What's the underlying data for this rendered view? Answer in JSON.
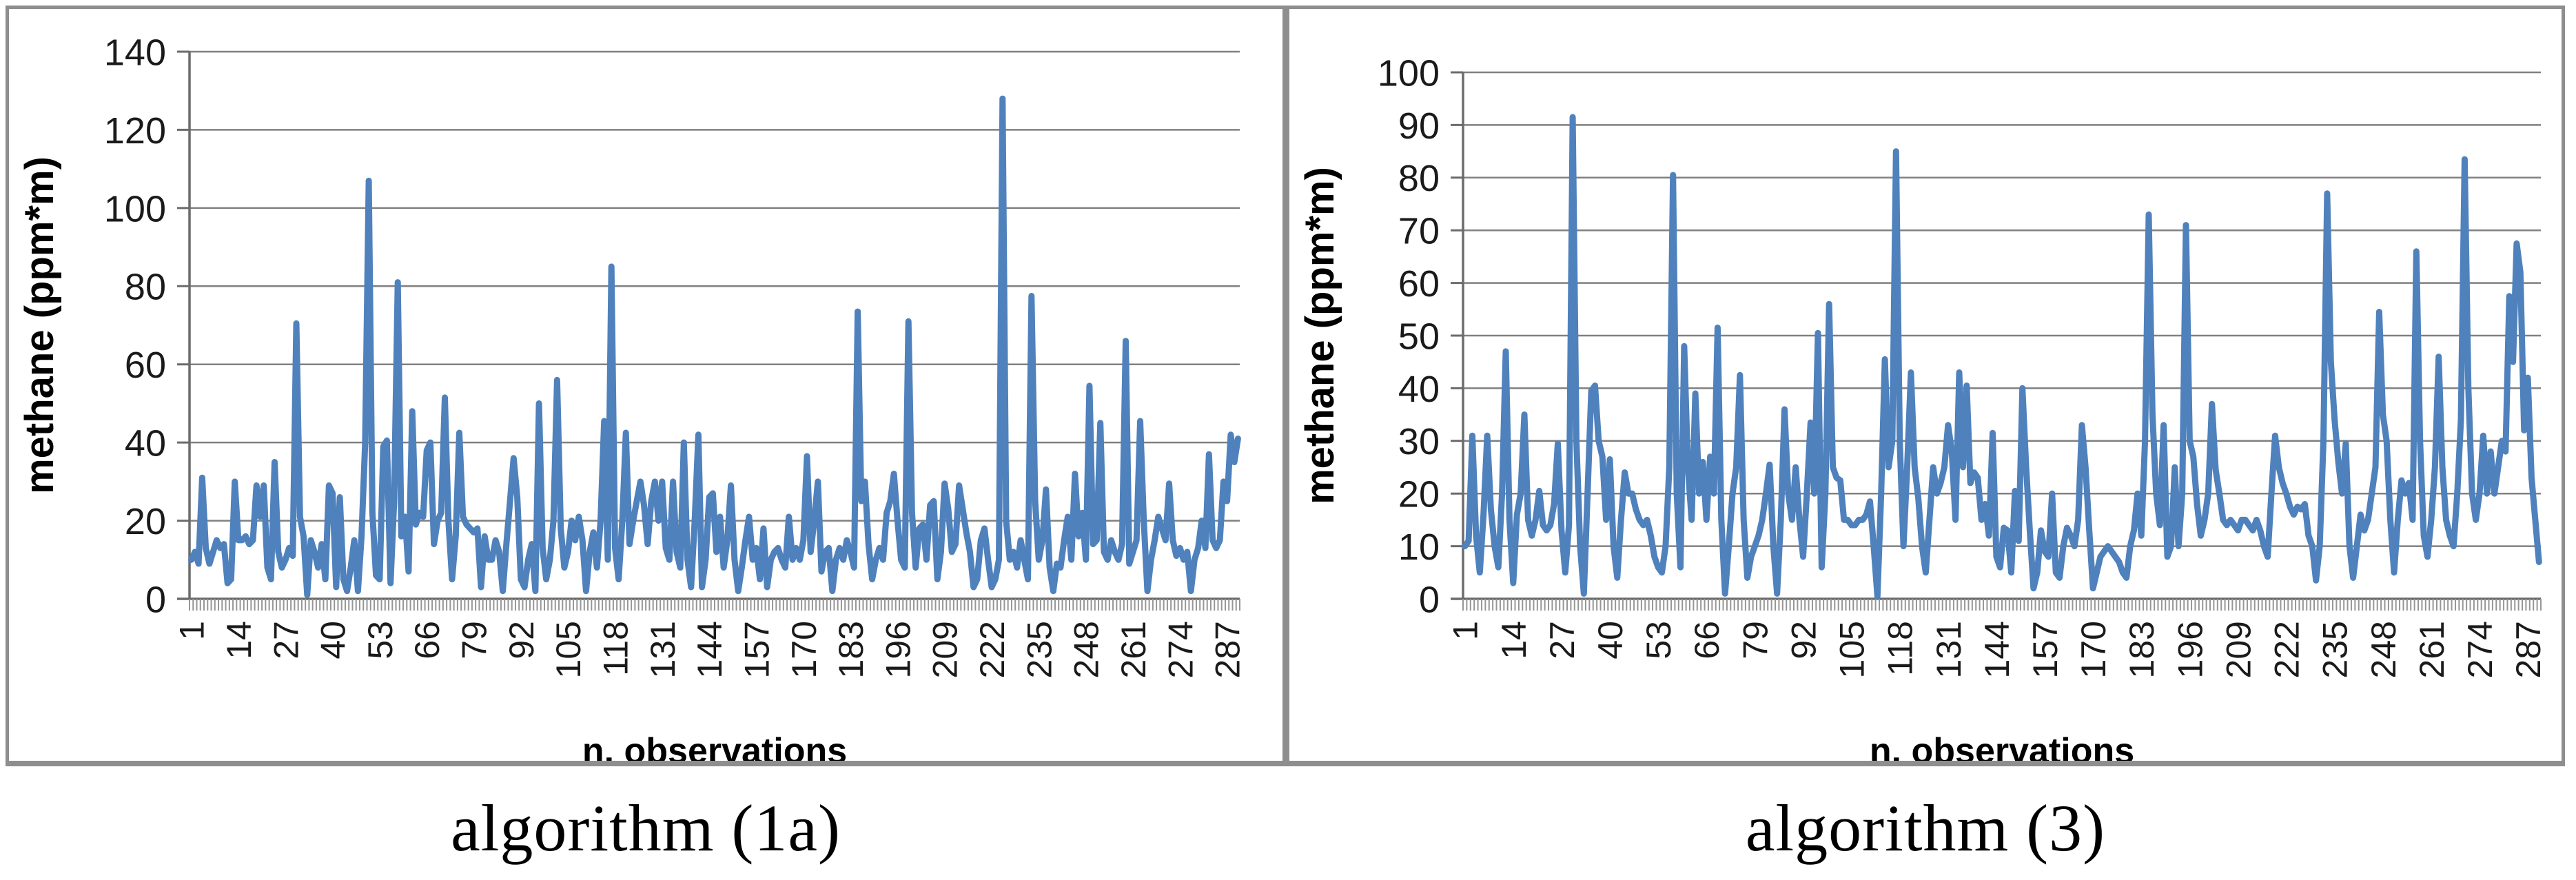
{
  "colors": {
    "series_line": "#4F81BD",
    "gridline": "#808080",
    "axis_line": "#6b6b6b",
    "tick_mark": "#969696",
    "panel_border": "#8e8e8e",
    "text": "#1a1a1a"
  },
  "chart_data": [
    {
      "type": "line",
      "title": "algorithm (1a)",
      "xlabel": "n. observations",
      "ylabel": "methane (ppm*m)",
      "ylim": [
        0,
        140
      ],
      "ystep": 20,
      "grid": true,
      "legend": null,
      "xticks": [
        1,
        14,
        27,
        40,
        53,
        66,
        79,
        92,
        105,
        118,
        131,
        144,
        157,
        170,
        183,
        196,
        209,
        222,
        235,
        248,
        261,
        274,
        287
      ],
      "series": [
        {
          "name": "methane",
          "values": [
            10,
            12,
            9,
            31,
            13,
            9,
            12,
            15,
            13,
            14,
            4,
            5,
            30,
            15,
            15,
            16,
            14,
            15,
            29,
            21,
            29,
            8,
            5,
            35,
            12,
            8,
            10,
            13,
            11,
            70.5,
            21,
            16,
            1,
            15,
            12,
            8,
            14,
            5,
            29,
            27,
            3,
            26,
            5,
            2,
            8,
            15,
            2,
            16,
            40,
            107,
            22,
            6,
            5,
            39,
            40.5,
            4,
            25,
            81,
            16,
            21,
            7,
            48,
            19,
            22,
            21,
            38,
            40,
            14,
            20,
            22,
            51.5,
            20,
            5,
            16,
            42.5,
            21,
            19,
            18,
            17,
            18,
            3,
            16,
            10,
            10,
            15,
            12,
            2,
            14,
            25,
            36,
            26,
            5,
            3,
            10,
            14,
            2,
            50,
            13,
            5,
            10,
            20,
            56,
            18,
            8,
            12,
            20,
            15,
            21,
            15,
            2,
            12,
            17,
            8,
            20,
            45.5,
            10,
            85,
            13,
            5,
            20,
            42.5,
            14,
            20,
            25,
            30,
            24,
            14,
            25,
            30,
            20,
            30,
            13,
            10,
            30,
            12,
            8,
            40,
            10,
            3,
            20,
            42,
            3,
            10,
            26,
            27,
            12,
            21,
            8,
            15,
            29,
            10,
            2,
            8,
            15,
            21,
            10,
            13,
            5,
            18,
            3,
            10,
            12,
            13,
            10,
            8,
            21,
            10,
            13,
            10,
            15,
            36.5,
            12,
            20,
            30,
            7,
            12,
            13,
            2,
            10,
            13,
            10,
            15,
            12,
            8,
            73.5,
            25,
            30,
            14,
            5,
            10,
            13,
            10,
            22,
            25,
            32,
            20,
            10,
            8,
            71,
            22,
            8,
            18,
            19,
            10,
            24,
            25,
            5,
            12,
            29.5,
            23,
            12,
            14,
            29,
            23,
            17,
            12,
            3,
            5,
            15,
            18,
            10,
            3,
            5,
            10,
            128,
            20,
            10,
            12,
            8,
            15,
            10,
            5,
            77.5,
            25,
            10,
            15,
            28,
            8,
            2,
            9,
            8,
            15,
            21,
            10,
            32,
            16,
            22,
            10,
            54.5,
            14,
            15,
            45,
            12,
            10,
            15,
            12,
            10,
            14,
            66,
            9,
            12,
            15,
            45.5,
            20,
            2,
            10,
            15,
            21,
            18,
            15,
            29.5,
            15,
            11,
            13,
            10,
            12,
            2,
            10,
            13,
            20,
            13,
            37,
            15,
            13,
            15,
            30,
            25,
            42,
            35,
            41
          ]
        }
      ]
    },
    {
      "type": "line",
      "title": "algorithm (3)",
      "xlabel": "n. observations",
      "ylabel": "methane (ppm*m)",
      "ylim": [
        0,
        100
      ],
      "ystep": 10,
      "grid": true,
      "legend": null,
      "xticks": [
        1,
        14,
        27,
        40,
        53,
        66,
        79,
        92,
        105,
        118,
        131,
        144,
        157,
        170,
        183,
        196,
        209,
        222,
        235,
        248,
        261,
        274,
        287
      ],
      "series": [
        {
          "name": "methane",
          "values": [
            10,
            11,
            31,
            12,
            5,
            16,
            31,
            17,
            10,
            6,
            20,
            47,
            15,
            3,
            16,
            20,
            35,
            15,
            12,
            15,
            20.5,
            14,
            13,
            14,
            18,
            29.5,
            13,
            5,
            14,
            91.5,
            30,
            10,
            1,
            20,
            39.5,
            40.5,
            30,
            27,
            15,
            26.5,
            10,
            4,
            15,
            24,
            20,
            20,
            17,
            15,
            14,
            15,
            12,
            8,
            6,
            5,
            10,
            25,
            80.5,
            20,
            6,
            48,
            25,
            15,
            39,
            20,
            26,
            15,
            27,
            20,
            51.5,
            15,
            1,
            10,
            20,
            25,
            42.5,
            15,
            4,
            8,
            10,
            12,
            15,
            20,
            25.5,
            10,
            1,
            15,
            36,
            20,
            15,
            25,
            15,
            8,
            20,
            33.5,
            20,
            50.5,
            6,
            20,
            56,
            25,
            23,
            22.5,
            15,
            15,
            14,
            14,
            15,
            15,
            16,
            18.5,
            10,
            0.5,
            20,
            45.5,
            25,
            30,
            85,
            30,
            10,
            25,
            43,
            25,
            19,
            10,
            5,
            15,
            25,
            20,
            22,
            25,
            33,
            28,
            15,
            43,
            25,
            40.5,
            22,
            24,
            23,
            15,
            18,
            12,
            31.5,
            8,
            6,
            13.5,
            13,
            5,
            20.5,
            11,
            40,
            25,
            13,
            2,
            5,
            13,
            9,
            8,
            20,
            5,
            4,
            10,
            13.5,
            12,
            10,
            15,
            33,
            25,
            13,
            2,
            5,
            8,
            9,
            10,
            9,
            8,
            7,
            5,
            4,
            10,
            13,
            20,
            12,
            30,
            73,
            35,
            20,
            14,
            33,
            8,
            10,
            25,
            10,
            20,
            71,
            30,
            27,
            18,
            12,
            15,
            20,
            37,
            24.5,
            20,
            15,
            14,
            15,
            14,
            13,
            15,
            15,
            14,
            13,
            15,
            13,
            10,
            8,
            20,
            31,
            25,
            22,
            20,
            17.5,
            16,
            17.5,
            17,
            18,
            12,
            10,
            3.5,
            10,
            30,
            77,
            45,
            34,
            26,
            20,
            29.5,
            10,
            4,
            10,
            16,
            13,
            15,
            20,
            25,
            54.5,
            35,
            30,
            15,
            5,
            15,
            22.5,
            20,
            22,
            15,
            66,
            30,
            12,
            8,
            15,
            25,
            46,
            25,
            15,
            12,
            10,
            20,
            34,
            83.5,
            40,
            20,
            15,
            20,
            31,
            20,
            28,
            20,
            25,
            30,
            28,
            57.5,
            45,
            67.5,
            62,
            32,
            42,
            23,
            15,
            7
          ]
        }
      ]
    }
  ]
}
